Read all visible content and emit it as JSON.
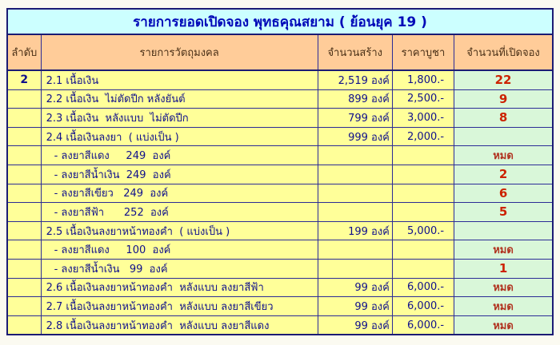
{
  "colors": {
    "page_background": "#fbfaf1",
    "table_border": "#1b1b74",
    "title_background": "#ccffff",
    "title_text": "#0008b8",
    "header_background": "#ffcc99",
    "header_text": "#4a3017",
    "body_background": "#ffff99",
    "body_text": "#10108c",
    "booked_column_background": "#d9f7d9",
    "booked_number_text": "#cc2200",
    "soldout_text": "#b13320"
  },
  "table": {
    "title": "รายการยอดเปิดจอง พุทธคุณสยาม ( ย้อนยุค 19 )",
    "headers": [
      "ลำดับ",
      "รายการวัตถุมงคล",
      "จำนวนสร้าง",
      "ราคาบูชา",
      "จำนวนที่เปิดจอง"
    ],
    "rows": [
      {
        "seq": "2",
        "item": "2.1 เนื้อเงิน",
        "qty": "2,519 องค์",
        "price": "1,800.-",
        "booked": "22",
        "status": "num",
        "indent": false
      },
      {
        "seq": "",
        "item": "2.2 เนื้อเงิน  ไม่ตัดปีก หลังยันต์",
        "qty": "899 องค์",
        "price": "2,500.-",
        "booked": "9",
        "status": "num",
        "indent": false
      },
      {
        "seq": "",
        "item": "2.3 เนื้อเงิน  หลังแบบ  ไม่ตัดปีก",
        "qty": "799 องค์",
        "price": "3,000.-",
        "booked": "8",
        "status": "num",
        "indent": false
      },
      {
        "seq": "",
        "item": "2.4 เนื้อเงินลงยา  ( แบ่งเป็น )",
        "qty": "999 องค์",
        "price": "2,000.-",
        "booked": "",
        "status": "none",
        "indent": false
      },
      {
        "seq": "",
        "item": "- ลงยาสีแดง     249  องค์",
        "qty": "",
        "price": "",
        "booked": "หมด",
        "status": "soldout",
        "indent": true
      },
      {
        "seq": "",
        "item": "- ลงยาสีน้ำเงิน  249  องค์",
        "qty": "",
        "price": "",
        "booked": "2",
        "status": "num",
        "indent": true
      },
      {
        "seq": "",
        "item": "- ลงยาสีเขียว   249  องค์",
        "qty": "",
        "price": "",
        "booked": "6",
        "status": "num",
        "indent": true
      },
      {
        "seq": "",
        "item": "- ลงยาสีฟ้า      252  องค์",
        "qty": "",
        "price": "",
        "booked": "5",
        "status": "num",
        "indent": true
      },
      {
        "seq": "",
        "item": "2.5 เนื้อเงินลงยาหน้าทองคำ  ( แบ่งเป็น )",
        "qty": "199 องค์",
        "price": "5,000.-",
        "booked": "",
        "status": "none",
        "indent": false
      },
      {
        "seq": "",
        "item": "- ลงยาสีแดง     100  องค์",
        "qty": "",
        "price": "",
        "booked": "หมด",
        "status": "soldout",
        "indent": true
      },
      {
        "seq": "",
        "item": "- ลงยาสีน้ำเงิน   99  องค์",
        "qty": "",
        "price": "",
        "booked": "1",
        "status": "num",
        "indent": true
      },
      {
        "seq": "",
        "item": "2.6 เนื้อเงินลงยาหน้าทองคำ  หลังแบบ ลงยาสีฟ้า",
        "qty": "99 องค์",
        "price": "6,000.-",
        "booked": "หมด",
        "status": "soldout",
        "indent": false
      },
      {
        "seq": "",
        "item": "2.7 เนื้อเงินลงยาหน้าทองคำ  หลังแบบ ลงยาสีเขียว",
        "qty": "99 องค์",
        "price": "6,000.-",
        "booked": "หมด",
        "status": "soldout",
        "indent": false
      },
      {
        "seq": "",
        "item": "2.8 เนื้อเงินลงยาหน้าทองคำ  หลังแบบ ลงยาสีแดง",
        "qty": "99 องค์",
        "price": "6,000.-",
        "booked": "หมด",
        "status": "soldout",
        "indent": false
      }
    ]
  }
}
